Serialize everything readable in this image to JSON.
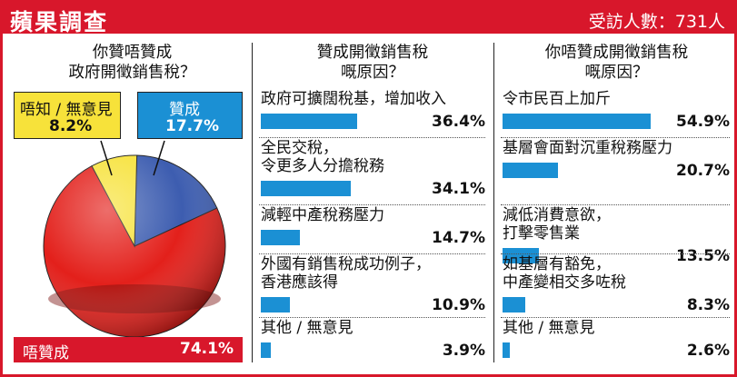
{
  "header": {
    "title": "蘋果調查",
    "respondents": "受訪人數：731人"
  },
  "colors": {
    "brand_red": "#d8172b",
    "bar_blue": "#1b90d4",
    "pie_red": "#e3201b",
    "pie_yellow": "#f7e23a",
    "pie_blue": "#3d5db0"
  },
  "chart_data": [
    {
      "type": "pie",
      "title": "你贊唔贊成\n政府開徵銷售稅？",
      "slices": [
        {
          "label": "唔贊成",
          "value": 74.1,
          "display": "74.1%",
          "color": "#e3201b"
        },
        {
          "label": "唔知 / 無意見",
          "value": 8.2,
          "display": "8.2%",
          "color": "#f7e23a"
        },
        {
          "label": "贊成",
          "value": 17.7,
          "display": "17.7%",
          "color": "#3d5db0"
        }
      ]
    },
    {
      "type": "bar",
      "title": "贊成開徵銷售稅\n嘅原因？",
      "categories": [
        "政府可擴闊稅基，增加收入",
        "全民交稅，\n令更多人分擔稅務",
        "減輕中產稅務壓力",
        "外國有銷售稅成功例子，\n香港應該得",
        "其他 / 無意見"
      ],
      "values": [
        36.4,
        34.1,
        14.7,
        10.9,
        3.9
      ],
      "display": [
        "36.4%",
        "34.1%",
        "14.7%",
        "10.9%",
        "3.9%"
      ]
    },
    {
      "type": "bar",
      "title": "你唔贊成開徵銷售稅\n嘅原因？",
      "categories": [
        "令市民百上加斤",
        "基層會面對沉重稅務壓力",
        "減低消費意欲，\n打擊零售業",
        "如基層有豁免，\n中產變相交多咗稅",
        "其他 / 無意見"
      ],
      "values": [
        54.9,
        20.7,
        13.5,
        8.3,
        2.6
      ],
      "display": [
        "54.9%",
        "20.7%",
        "13.5%",
        "8.3%",
        "2.6%"
      ]
    }
  ]
}
